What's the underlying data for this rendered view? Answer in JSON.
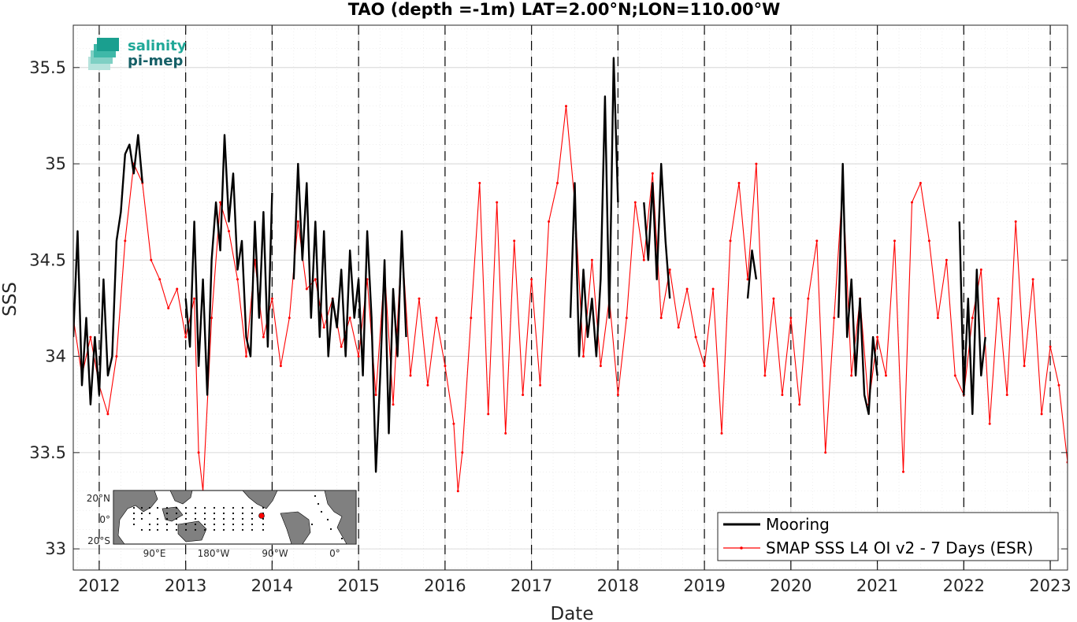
{
  "chart_data": {
    "type": "line",
    "title": "TAO (depth =-1m) LAT=2.00°N;LON=110.00°W",
    "xlabel": "Date",
    "ylabel": "SSS",
    "xlim": [
      2011.7,
      2023.2
    ],
    "ylim": [
      32.89,
      35.72
    ],
    "x_ticks": [
      2012,
      2013,
      2014,
      2015,
      2016,
      2017,
      2018,
      2019,
      2020,
      2021,
      2022,
      2023
    ],
    "x_tick_labels": [
      "2012",
      "2013",
      "2014",
      "2015",
      "2016",
      "2017",
      "2018",
      "2019",
      "2020",
      "2021",
      "2022",
      "2023"
    ],
    "y_ticks": [
      33,
      33.5,
      34,
      34.5,
      35,
      35.5
    ],
    "y_tick_labels": [
      "33",
      "33.5",
      "34",
      "34.5",
      "35",
      "35.5"
    ],
    "year_divider_lines": [
      2012,
      2013,
      2014,
      2015,
      2016,
      2017,
      2018,
      2019,
      2020,
      2021,
      2022,
      2023
    ],
    "grid": true,
    "legend_position": "bottom-right",
    "series": [
      {
        "name": "Mooring",
        "color": "#000000",
        "segments": [
          {
            "x": [
              2011.7,
              2011.75,
              2011.8,
              2011.85,
              2011.9,
              2011.95,
              2012.0,
              2012.05,
              2012.1,
              2012.15,
              2012.2,
              2012.25,
              2012.3,
              2012.35,
              2012.4,
              2012.45,
              2012.5
            ],
            "y": [
              34.1,
              34.65,
              33.85,
              34.2,
              33.75,
              34.1,
              33.8,
              34.4,
              33.9,
              34.0,
              34.6,
              34.75,
              35.05,
              35.1,
              34.95,
              35.15,
              34.9
            ]
          },
          {
            "x": [
              2013.0,
              2013.05,
              2013.1,
              2013.15,
              2013.2,
              2013.25,
              2013.3,
              2013.35,
              2013.4,
              2013.45,
              2013.5,
              2013.55,
              2013.6,
              2013.65,
              2013.7,
              2013.75,
              2013.8,
              2013.85,
              2013.9,
              2013.95,
              2014.0
            ],
            "y": [
              34.3,
              34.05,
              34.7,
              33.95,
              34.4,
              33.8,
              34.5,
              34.8,
              34.55,
              35.15,
              34.7,
              34.95,
              34.45,
              34.6,
              34.1,
              34.0,
              34.7,
              34.2,
              34.75,
              34.05,
              34.85
            ]
          },
          {
            "x": [
              2014.25,
              2014.3,
              2014.35,
              2014.4,
              2014.45,
              2014.5,
              2014.55,
              2014.6,
              2014.65,
              2014.7,
              2014.75,
              2014.8,
              2014.85,
              2014.9,
              2014.95,
              2015.0,
              2015.05,
              2015.1,
              2015.15,
              2015.2,
              2015.25,
              2015.3,
              2015.35,
              2015.4,
              2015.45,
              2015.5,
              2015.55
            ],
            "y": [
              34.4,
              35.0,
              34.5,
              34.9,
              34.2,
              34.7,
              34.1,
              34.65,
              34.0,
              34.3,
              34.15,
              34.45,
              34.0,
              34.55,
              34.2,
              34.4,
              33.9,
              34.65,
              34.2,
              33.4,
              33.9,
              34.5,
              33.6,
              34.35,
              34.0,
              34.65,
              34.1
            ]
          },
          {
            "x": [
              2017.45,
              2017.5,
              2017.55,
              2017.6,
              2017.65,
              2017.7,
              2017.75,
              2017.8,
              2017.85,
              2017.9,
              2017.95,
              2018.0
            ],
            "y": [
              34.2,
              34.9,
              34.0,
              34.45,
              34.1,
              34.3,
              34.0,
              34.4,
              35.35,
              34.2,
              35.55,
              34.8
            ]
          },
          {
            "x": [
              2018.3,
              2018.35,
              2018.4,
              2018.45,
              2018.5,
              2018.55,
              2018.6
            ],
            "y": [
              34.8,
              34.5,
              34.9,
              34.4,
              35.0,
              34.6,
              34.3
            ]
          },
          {
            "x": [
              2019.5,
              2019.55,
              2019.6
            ],
            "y": [
              34.3,
              34.55,
              34.4
            ]
          },
          {
            "x": [
              2020.55,
              2020.6,
              2020.65,
              2020.7,
              2020.75,
              2020.8,
              2020.85,
              2020.9,
              2020.95,
              2021.0
            ],
            "y": [
              34.2,
              35.0,
              34.1,
              34.4,
              33.9,
              34.3,
              33.8,
              33.7,
              34.1,
              33.9
            ]
          },
          {
            "x": [
              2021.95,
              2022.0,
              2022.05,
              2022.1,
              2022.15,
              2022.2,
              2022.25
            ],
            "y": [
              34.7,
              33.8,
              34.3,
              33.7,
              34.45,
              33.9,
              34.1
            ]
          }
        ]
      },
      {
        "name": "SMAP SSS L4 OI v2 - 7 Days (ESR)",
        "color": "#ff0000",
        "x": [
          2011.7,
          2011.8,
          2011.9,
          2012.0,
          2012.1,
          2012.2,
          2012.3,
          2012.4,
          2012.5,
          2012.6,
          2012.7,
          2012.8,
          2012.9,
          2013.0,
          2013.1,
          2013.15,
          2013.2,
          2013.3,
          2013.4,
          2013.5,
          2013.6,
          2013.7,
          2013.8,
          2013.9,
          2014.0,
          2014.1,
          2014.2,
          2014.3,
          2014.4,
          2014.5,
          2014.6,
          2014.7,
          2014.8,
          2014.9,
          2015.0,
          2015.1,
          2015.2,
          2015.3,
          2015.4,
          2015.5,
          2015.6,
          2015.7,
          2015.8,
          2015.9,
          2016.0,
          2016.1,
          2016.15,
          2016.2,
          2016.3,
          2016.4,
          2016.5,
          2016.6,
          2016.7,
          2016.8,
          2016.9,
          2017.0,
          2017.1,
          2017.2,
          2017.3,
          2017.4,
          2017.5,
          2017.6,
          2017.7,
          2017.8,
          2017.9,
          2018.0,
          2018.1,
          2018.2,
          2018.3,
          2018.4,
          2018.5,
          2018.6,
          2018.7,
          2018.8,
          2018.9,
          2019.0,
          2019.1,
          2019.2,
          2019.3,
          2019.4,
          2019.5,
          2019.6,
          2019.7,
          2019.8,
          2019.9,
          2020.0,
          2020.1,
          2020.2,
          2020.3,
          2020.4,
          2020.5,
          2020.6,
          2020.7,
          2020.8,
          2020.9,
          2021.0,
          2021.1,
          2021.2,
          2021.3,
          2021.4,
          2021.5,
          2021.6,
          2021.7,
          2021.8,
          2021.9,
          2022.0,
          2022.1,
          2022.2,
          2022.3,
          2022.4,
          2022.5,
          2022.6,
          2022.7,
          2022.8,
          2022.9,
          2023.0,
          2023.1,
          2023.2
        ],
        "y": [
          34.2,
          33.9,
          34.1,
          33.85,
          33.7,
          34.0,
          34.6,
          35.0,
          34.9,
          34.5,
          34.4,
          34.25,
          34.35,
          34.1,
          34.3,
          33.5,
          33.3,
          34.2,
          34.8,
          34.65,
          34.4,
          34.0,
          34.5,
          34.1,
          34.3,
          33.95,
          34.2,
          34.7,
          34.35,
          34.4,
          34.15,
          34.3,
          34.05,
          34.2,
          34.0,
          34.4,
          33.8,
          34.45,
          33.75,
          34.6,
          33.9,
          34.3,
          33.85,
          34.2,
          33.95,
          33.65,
          33.3,
          33.5,
          34.2,
          34.9,
          33.7,
          34.8,
          33.6,
          34.6,
          33.8,
          34.4,
          33.85,
          34.7,
          34.9,
          35.3,
          34.8,
          34.0,
          34.5,
          33.95,
          34.3,
          33.8,
          34.2,
          34.8,
          34.5,
          34.95,
          34.2,
          34.45,
          34.15,
          34.35,
          34.1,
          33.95,
          34.35,
          33.6,
          34.6,
          34.9,
          34.4,
          35.0,
          33.9,
          34.3,
          33.8,
          34.2,
          33.75,
          34.3,
          34.6,
          33.5,
          34.2,
          34.9,
          33.9,
          34.3,
          33.75,
          34.1,
          33.9,
          34.6,
          33.4,
          34.8,
          34.9,
          34.6,
          34.2,
          34.5,
          33.9,
          33.8,
          34.2,
          34.45,
          33.65,
          34.3,
          33.8,
          34.7,
          33.95,
          34.4,
          33.7,
          34.05,
          33.85,
          33.45
        ]
      }
    ],
    "inset_map": {
      "x_tick_labels": [
        "90°E",
        "180°W",
        "90°W",
        "0°"
      ],
      "y_tick_labels": [
        "20°N",
        "0°",
        "20°S"
      ],
      "location_marker_color": "#ff0000"
    },
    "logo": {
      "line1": "salinity",
      "line2": "pi-mep"
    }
  }
}
